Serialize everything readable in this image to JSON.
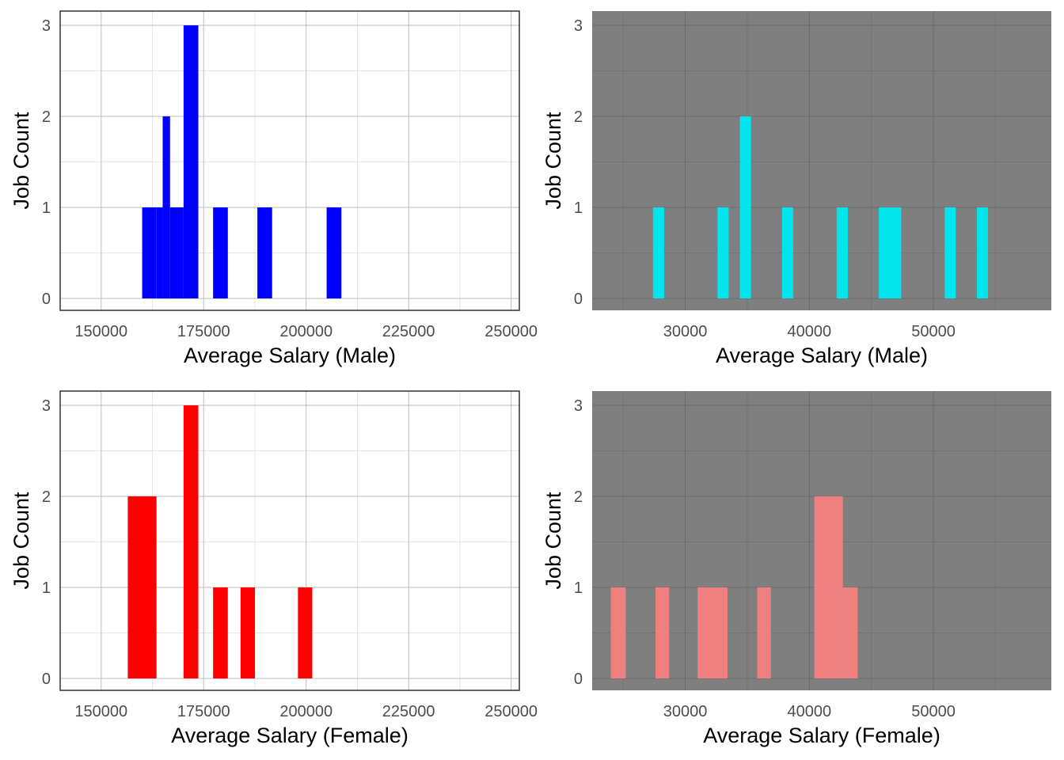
{
  "chart_data": [
    {
      "id": "male-a",
      "type": "bar",
      "theme": "light",
      "bar_color": "#0000FF",
      "xlabel": "Average Salary (Male)",
      "ylabel": "Job Count",
      "xlim": [
        140000,
        252000
      ],
      "ylim": [
        0,
        3
      ],
      "xticks": [
        150000,
        175000,
        200000,
        225000,
        250000
      ],
      "xtick_labels": [
        "150000",
        "175000",
        "200000",
        "225000",
        "250000"
      ],
      "yticks": [
        0,
        1,
        2,
        3
      ],
      "ytick_labels": [
        "0",
        "1",
        "2",
        "3"
      ],
      "bins": [
        {
          "x0": 160000,
          "x1": 163500,
          "count": 1
        },
        {
          "x0": 163500,
          "x1": 165000,
          "count": 1
        },
        {
          "x0": 165000,
          "x1": 166800,
          "count": 2
        },
        {
          "x0": 166800,
          "x1": 170100,
          "count": 1
        },
        {
          "x0": 170100,
          "x1": 173700,
          "count": 3
        },
        {
          "x0": 177300,
          "x1": 180900,
          "count": 1
        },
        {
          "x0": 188100,
          "x1": 191700,
          "count": 1
        },
        {
          "x0": 205000,
          "x1": 208600,
          "count": 1
        }
      ]
    },
    {
      "id": "male-b",
      "type": "bar",
      "theme": "dark",
      "bar_color": "#00E5EE",
      "xlabel": "Average Salary (Male)",
      "ylabel": "Job Count",
      "xlim": [
        22500,
        59500
      ],
      "ylim": [
        0,
        3
      ],
      "xticks": [
        30000,
        40000,
        50000
      ],
      "xtick_labels": [
        "30000",
        "40000",
        "50000"
      ],
      "yticks": [
        0,
        1,
        2,
        3
      ],
      "ytick_labels": [
        "0",
        "1",
        "2",
        "3"
      ],
      "bins": [
        {
          "x0": 27400,
          "x1": 28300,
          "count": 1
        },
        {
          "x0": 32600,
          "x1": 33500,
          "count": 1
        },
        {
          "x0": 34400,
          "x1": 35300,
          "count": 2
        },
        {
          "x0": 37800,
          "x1": 38700,
          "count": 1
        },
        {
          "x0": 42200,
          "x1": 43100,
          "count": 1
        },
        {
          "x0": 45600,
          "x1": 47400,
          "count": 1
        },
        {
          "x0": 50900,
          "x1": 51800,
          "count": 1
        },
        {
          "x0": 53500,
          "x1": 54400,
          "count": 1
        }
      ]
    },
    {
      "id": "female-a",
      "type": "bar",
      "theme": "light",
      "bar_color": "#FF0000",
      "xlabel": "Average Salary (Female)",
      "ylabel": "Job Count",
      "xlim": [
        140000,
        252000
      ],
      "ylim": [
        0,
        3
      ],
      "xticks": [
        150000,
        175000,
        200000,
        225000,
        250000
      ],
      "xtick_labels": [
        "150000",
        "175000",
        "200000",
        "225000",
        "250000"
      ],
      "yticks": [
        0,
        1,
        2,
        3
      ],
      "ytick_labels": [
        "0",
        "1",
        "2",
        "3"
      ],
      "bins": [
        {
          "x0": 156500,
          "x1": 163500,
          "count": 2
        },
        {
          "x0": 170100,
          "x1": 173700,
          "count": 3
        },
        {
          "x0": 177300,
          "x1": 180900,
          "count": 1
        },
        {
          "x0": 184000,
          "x1": 187500,
          "count": 1
        },
        {
          "x0": 198000,
          "x1": 201500,
          "count": 1
        }
      ]
    },
    {
      "id": "female-b",
      "type": "bar",
      "theme": "dark",
      "bar_color": "#F08080",
      "xlabel": "Average Salary (Female)",
      "ylabel": "Job Count",
      "xlim": [
        22500,
        59500
      ],
      "ylim": [
        0,
        3
      ],
      "xticks": [
        30000,
        40000,
        50000
      ],
      "xtick_labels": [
        "30000",
        "40000",
        "50000"
      ],
      "yticks": [
        0,
        1,
        2,
        3
      ],
      "ytick_labels": [
        "0",
        "1",
        "2",
        "3"
      ],
      "bins": [
        {
          "x0": 24000,
          "x1": 25200,
          "count": 1
        },
        {
          "x0": 27600,
          "x1": 28700,
          "count": 1
        },
        {
          "x0": 31000,
          "x1": 33400,
          "count": 1
        },
        {
          "x0": 35800,
          "x1": 36900,
          "count": 1
        },
        {
          "x0": 40400,
          "x1": 42700,
          "count": 2
        },
        {
          "x0": 42700,
          "x1": 43900,
          "count": 1
        }
      ]
    }
  ]
}
